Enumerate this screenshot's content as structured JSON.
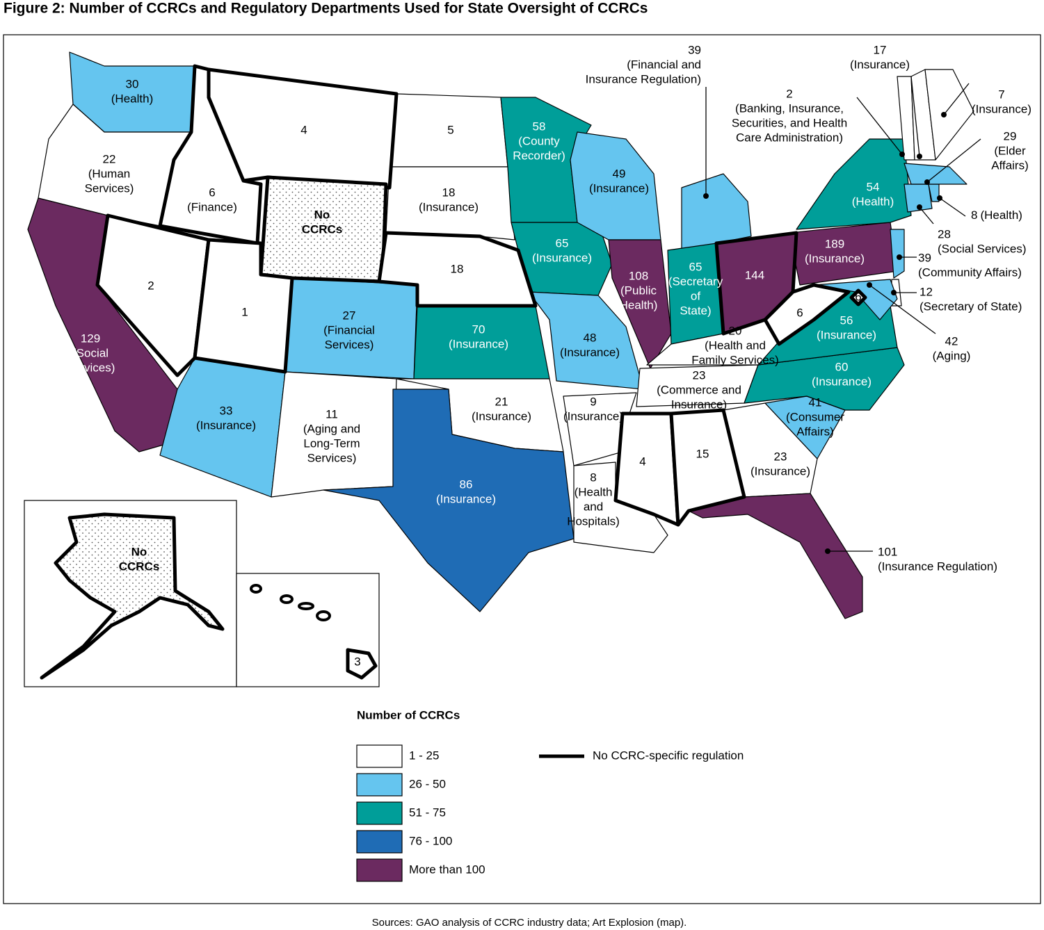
{
  "title": "Figure 2: Number of CCRCs and Regulatory Departments Used for State Oversight of CCRCs",
  "states": [
    {
      "count": 30,
      "department": [
        "(Health)"
      ],
      "color": "#65c5ef",
      "no_ccrc_specific_regulation": false
    },
    {
      "count": 22,
      "department": [
        "(Human",
        "Services)"
      ],
      "color": "#ffffff",
      "no_ccrc_specific_regulation": false
    },
    {
      "count": 129,
      "department": [
        "(Social",
        "Services)"
      ],
      "color": "#6b2a60",
      "no_ccrc_specific_regulation": false
    },
    {
      "count": 6,
      "department": [
        "(Finance)"
      ],
      "color": "#ffffff",
      "no_ccrc_specific_regulation": true
    },
    {
      "count": 2,
      "department": [],
      "color": "#ffffff",
      "no_ccrc_specific_regulation": true
    },
    {
      "count": 4,
      "department": [],
      "color": "#ffffff",
      "no_ccrc_specific_regulation": true
    },
    {
      "label": [
        "No",
        "CCRCs"
      ],
      "color": "#ffffff",
      "pattern": "dots",
      "no_ccrc_specific_regulation": true
    },
    {
      "count": 1,
      "department": [],
      "color": "#ffffff",
      "no_ccrc_specific_regulation": true
    },
    {
      "count": 33,
      "department": [
        "(Insurance)"
      ],
      "color": "#65c5ef",
      "no_ccrc_specific_regulation": false
    },
    {
      "count": 27,
      "department": [
        "(Financial",
        "Services)"
      ],
      "color": "#65c5ef",
      "no_ccrc_specific_regulation": false
    },
    {
      "count": 11,
      "department": [
        "(Aging and",
        "Long-Term",
        "Services)"
      ],
      "color": "#ffffff",
      "no_ccrc_specific_regulation": false
    },
    {
      "count": 5,
      "department": [],
      "color": "#ffffff",
      "no_ccrc_specific_regulation": false
    },
    {
      "count": 18,
      "department": [
        "(Insurance)"
      ],
      "color": "#ffffff",
      "no_ccrc_specific_regulation": false
    },
    {
      "count": 18,
      "department": [],
      "color": "#ffffff",
      "no_ccrc_specific_regulation": true
    },
    {
      "count": 70,
      "department": [
        "(Insurance)"
      ],
      "color": "#009e99",
      "no_ccrc_specific_regulation": false
    },
    {
      "count": 21,
      "department": [
        "(Insurance)"
      ],
      "color": "#ffffff",
      "no_ccrc_specific_regulation": false
    },
    {
      "count": 86,
      "department": [
        "(Insurance)"
      ],
      "color": "#1f6cb5",
      "no_ccrc_specific_regulation": false
    },
    {
      "count": 58,
      "department": [
        "(County",
        "Recorder)"
      ],
      "color": "#009e99",
      "no_ccrc_specific_regulation": false
    },
    {
      "count": 65,
      "department": [
        "(Insurance)"
      ],
      "color": "#009e99",
      "no_ccrc_specific_regulation": false
    },
    {
      "count": 48,
      "department": [
        "(Insurance)"
      ],
      "color": "#65c5ef",
      "no_ccrc_specific_regulation": false
    },
    {
      "count": 49,
      "department": [
        "(Insurance)"
      ],
      "color": "#65c5ef",
      "no_ccrc_specific_regulation": false
    },
    {
      "count": 108,
      "department": [
        "(Public",
        "Health)"
      ],
      "color": "#6b2a60",
      "no_ccrc_specific_regulation": false
    },
    {
      "count": 39,
      "department": [
        "(Financial and",
        "Insurance Regulation)"
      ],
      "color": "#65c5ef",
      "no_ccrc_specific_regulation": false
    },
    {
      "count": 65,
      "department": [
        "(Secretary",
        "of",
        "State)"
      ],
      "color": "#009e99",
      "no_ccrc_specific_regulation": false
    },
    {
      "count": 144,
      "department": [],
      "color": "#6b2a60",
      "no_ccrc_specific_regulation": true
    },
    {
      "count": 20,
      "department": [
        "(Health and",
        "Family Services)"
      ],
      "color": "#ffffff",
      "no_ccrc_specific_regulation": false
    },
    {
      "count": 6,
      "department": [],
      "color": "#ffffff",
      "no_ccrc_specific_regulation": true
    },
    {
      "count": 23,
      "department": [
        "(Commerce and",
        "Insurance)"
      ],
      "color": "#ffffff",
      "no_ccrc_specific_regulation": false
    },
    {
      "count": 4,
      "department": [],
      "color": "#ffffff",
      "no_ccrc_specific_regulation": true
    },
    {
      "count": 15,
      "department": [],
      "color": "#ffffff",
      "no_ccrc_specific_regulation": true
    },
    {
      "count": 23,
      "department": [
        "(Insurance)"
      ],
      "color": "#ffffff",
      "no_ccrc_specific_regulation": false
    },
    {
      "count": 101,
      "department": [
        "(Insurance Regulation)"
      ],
      "color": "#6b2a60",
      "no_ccrc_specific_regulation": false
    },
    {
      "count": 8,
      "department": [
        "(Health",
        "and",
        "Hospitals)"
      ],
      "color": "#ffffff",
      "no_ccrc_specific_regulation": false
    },
    {
      "count": 9,
      "department": [
        "(Insurance)"
      ],
      "color": "#ffffff",
      "no_ccrc_specific_regulation": false
    },
    {
      "count": 41,
      "department": [
        "(Consumer",
        "Affairs)"
      ],
      "color": "#65c5ef",
      "no_ccrc_specific_regulation": false
    },
    {
      "count": 60,
      "department": [
        "(Insurance)"
      ],
      "color": "#009e99",
      "no_ccrc_specific_regulation": false
    },
    {
      "count": 56,
      "department": [
        "(Insurance)"
      ],
      "color": "#009e99",
      "no_ccrc_specific_regulation": false
    },
    {
      "count": 189,
      "department": [
        "(Insurance)"
      ],
      "color": "#6b2a60",
      "no_ccrc_specific_regulation": false
    },
    {
      "count": 54,
      "department": [
        "(Health)"
      ],
      "color": "#009e99",
      "no_ccrc_specific_regulation": false
    },
    {
      "count": 39,
      "department": [
        "(Community Affairs)"
      ],
      "color": "#65c5ef",
      "no_ccrc_specific_regulation": false
    },
    {
      "count": 12,
      "department": [
        "(Secretary of State)"
      ],
      "color": "#ffffff",
      "no_ccrc_specific_regulation": false
    },
    {
      "count": 42,
      "department": [
        "(Aging)"
      ],
      "color": "#65c5ef",
      "no_ccrc_specific_regulation": false
    },
    {
      "count": 6,
      "department": [],
      "color": "#ffffff",
      "no_ccrc_specific_regulation": true
    },
    {
      "count": 28,
      "department": [
        "(Social Services)"
      ],
      "color": "#65c5ef",
      "no_ccrc_specific_regulation": false
    },
    {
      "count": 8,
      "department": [
        "(Health)"
      ],
      "color": "#65c5ef",
      "no_ccrc_specific_regulation": false
    },
    {
      "count": 29,
      "department": [
        "(Elder",
        "Affairs)"
      ],
      "color": "#65c5ef",
      "no_ccrc_specific_regulation": false
    },
    {
      "count": 2,
      "department": [
        "(Banking, Insurance,",
        "Securities, and Health",
        "Care Administration)"
      ],
      "color": "#ffffff",
      "no_ccrc_specific_regulation": false
    },
    {
      "count": 17,
      "department": [
        "(Insurance)"
      ],
      "color": "#ffffff",
      "no_ccrc_specific_regulation": false
    },
    {
      "count": 7,
      "department": [
        "(Insurance)"
      ],
      "color": "#ffffff",
      "no_ccrc_specific_regulation": false
    },
    {
      "label": [
        "No",
        "CCRCs"
      ],
      "color": "#ffffff",
      "pattern": "dots",
      "no_ccrc_specific_regulation": true
    },
    {
      "count": 3,
      "department": [],
      "color": "#ffffff",
      "no_ccrc_specific_regulation": true
    }
  ],
  "legend": {
    "title": "Number of CCRCs",
    "items": [
      {
        "label": "1 - 25",
        "color": "#ffffff"
      },
      {
        "label": "26 - 50",
        "color": "#65c5ef"
      },
      {
        "label": "51 - 75",
        "color": "#009e99"
      },
      {
        "label": "76 - 100",
        "color": "#1f6cb5"
      },
      {
        "label": "More than 100",
        "color": "#6b2a60"
      }
    ],
    "line_label": "No CCRC-specific regulation"
  },
  "source": "Sources: GAO analysis of CCRC industry data; Art Explosion (map)."
}
